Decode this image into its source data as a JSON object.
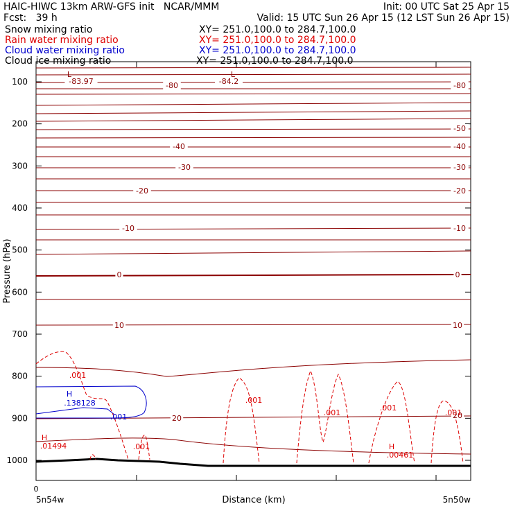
{
  "header": {
    "title": "HAIC-HIWC 13km ARW-GFS init   NCAR/MMM",
    "init": "Init: 00 UTC Sat 25 Apr 15",
    "fcst": "Fcst:   39 h",
    "valid": "Valid: 15 UTC Sun 26 Apr 15 (12 LST Sun 26 Apr 15)"
  },
  "legend": [
    {
      "label": "Snow mixing ratio",
      "xy": "XY= 251.0,100.0 to 284.7,100.0",
      "color": "#000000"
    },
    {
      "label": "Rain water mixing ratio",
      "xy": "XY= 251.0,100.0 to 284.7,100.0",
      "color": "#dd0000"
    },
    {
      "label": "Cloud water mixing ratio",
      "xy": "XY= 251.0,100.0 to 284.7,100.0",
      "color": "#0000cc"
    },
    {
      "label": "Cloud ice mixing ratio",
      "xy": "XY= 251.0,100.0 to 284.7,100.0",
      "color": "#000000"
    }
  ],
  "chart_data": {
    "type": "line",
    "xlabel": "Distance (km)",
    "ylabel": "Pressure (hPa)",
    "x_ticks": [
      "0"
    ],
    "x_end_labels": [
      "5n54w",
      "5n50w"
    ],
    "y_ticks": [
      100,
      200,
      300,
      400,
      500,
      600,
      700,
      800,
      900,
      1000
    ],
    "colors": {
      "temperature": "#8b0000",
      "rain": "#dd0000",
      "cloud_water": "#0000cc",
      "terrain": "#000000"
    },
    "temperature_labels": [
      {
        "text": "-83.97",
        "p": 100
      },
      {
        "text": "-84.2",
        "p": 100
      },
      {
        "text": "-80",
        "p": 108
      },
      {
        "text": "-80",
        "p": 108
      },
      {
        "text": "-50",
        "p": 210
      },
      {
        "text": "-40",
        "p": 250
      },
      {
        "text": "-40",
        "p": 250
      },
      {
        "text": "-30",
        "p": 305
      },
      {
        "text": "-30",
        "p": 305
      },
      {
        "text": "-20",
        "p": 365
      },
      {
        "text": "-20",
        "p": 365
      },
      {
        "text": "-10",
        "p": 450
      },
      {
        "text": "-10",
        "p": 450
      },
      {
        "text": "0",
        "p": 560
      },
      {
        "text": "0",
        "p": 560
      },
      {
        "text": "10",
        "p": 685
      },
      {
        "text": "10",
        "p": 685
      },
      {
        "text": "20",
        "p": 900
      },
      {
        "text": "20",
        "p": 900
      }
    ],
    "extrema_labels": [
      {
        "text": "L",
        "kind": "low"
      },
      {
        "text": "L",
        "kind": "low"
      },
      {
        "text": "H",
        "kind": "high",
        "series": "rain"
      },
      {
        "text": ".01494",
        "kind": "value",
        "series": "rain"
      },
      {
        "text": "H",
        "kind": "high",
        "series": "cloud_water"
      },
      {
        "text": ".138128",
        "kind": "value",
        "series": "cloud_water"
      },
      {
        "text": "H",
        "kind": "high",
        "series": "rain"
      },
      {
        "text": ".00461",
        "kind": "value",
        "series": "rain"
      }
    ],
    "rain_labels": [
      ".001",
      ".001",
      ".001",
      ".001",
      ".001",
      ".001",
      ".001"
    ],
    "cloud_water_labels": [
      ".001"
    ]
  }
}
